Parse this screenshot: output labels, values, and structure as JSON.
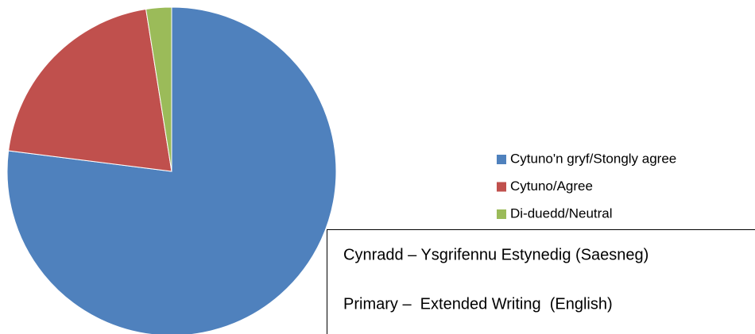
{
  "chart_data": {
    "type": "pie",
    "categories": [
      "Cytuno'n gryf/Stongly agree",
      "Cytuno/Agree",
      "Di-duedd/Neutral"
    ],
    "values": [
      77,
      20.5,
      2.5
    ],
    "colors": [
      "#4f81bd",
      "#c0504d",
      "#9bbb59"
    ],
    "annotations": [
      "Cynradd – Ysgrifennu Estynedig (Saesneg)",
      "Primary –  Extended Writing  (English)"
    ]
  }
}
